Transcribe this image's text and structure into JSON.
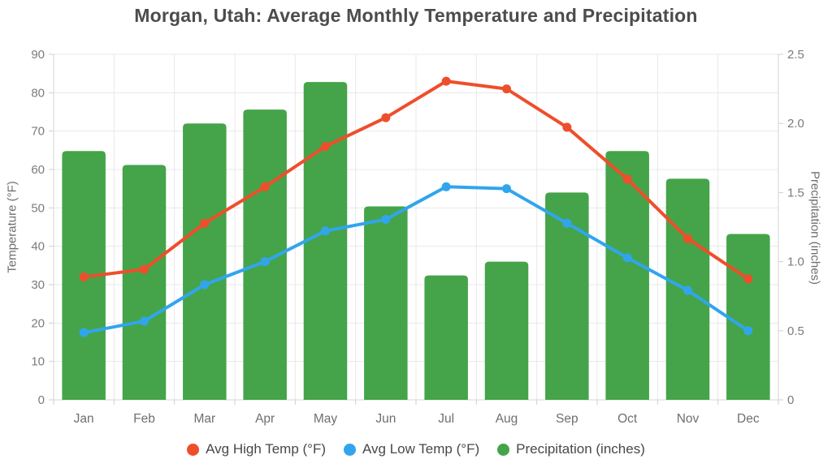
{
  "title": "Morgan, Utah: Average Monthly Temperature and Precipitation",
  "colors": {
    "high_temp": "#ef4e2b",
    "low_temp": "#31a5ec",
    "precipitation": "#45a449",
    "gridline": "#e8e8e8",
    "axis_line": "#d6d6d6",
    "tick_mark": "#cfcfcf",
    "title_text": "#4c4c4c",
    "tick_text": "#7b7b7b",
    "background": "#ffffff"
  },
  "chart_data": {
    "type": "combo",
    "title": "Morgan, Utah: Average Monthly Temperature and Precipitation",
    "categories": [
      "Jan",
      "Feb",
      "Mar",
      "Apr",
      "May",
      "Jun",
      "Jul",
      "Aug",
      "Sep",
      "Oct",
      "Nov",
      "Dec"
    ],
    "series": [
      {
        "name": "Avg High Temp (°F)",
        "type": "line",
        "axis": "left",
        "color": "#ef4e2b",
        "values": [
          32,
          34,
          46,
          55.5,
          66,
          73.5,
          83,
          81,
          71,
          57.5,
          42,
          31.5
        ]
      },
      {
        "name": "Avg Low Temp (°F)",
        "type": "line",
        "axis": "left",
        "color": "#31a5ec",
        "values": [
          17.5,
          20.5,
          30,
          36,
          44,
          47,
          55.5,
          55,
          46,
          37,
          28.5,
          18
        ]
      },
      {
        "name": "Precipitation (inches)",
        "type": "bar",
        "axis": "right",
        "color": "#45a449",
        "values": [
          1.8,
          1.7,
          2.0,
          2.1,
          2.3,
          1.4,
          0.9,
          1.0,
          1.5,
          1.8,
          1.6,
          1.2
        ]
      }
    ],
    "left_axis": {
      "label": "Temperature (°F)",
      "min": 0,
      "max": 90,
      "ticks": [
        0,
        10,
        20,
        30,
        40,
        50,
        60,
        70,
        80,
        90
      ]
    },
    "right_axis": {
      "label": "Precipitation (inches)",
      "min": 0,
      "max": 2.5,
      "ticks": [
        "0",
        "0.5",
        "1.0",
        "1.5",
        "2.0",
        "2.5"
      ]
    },
    "grid": true,
    "legend_position": "bottom"
  }
}
